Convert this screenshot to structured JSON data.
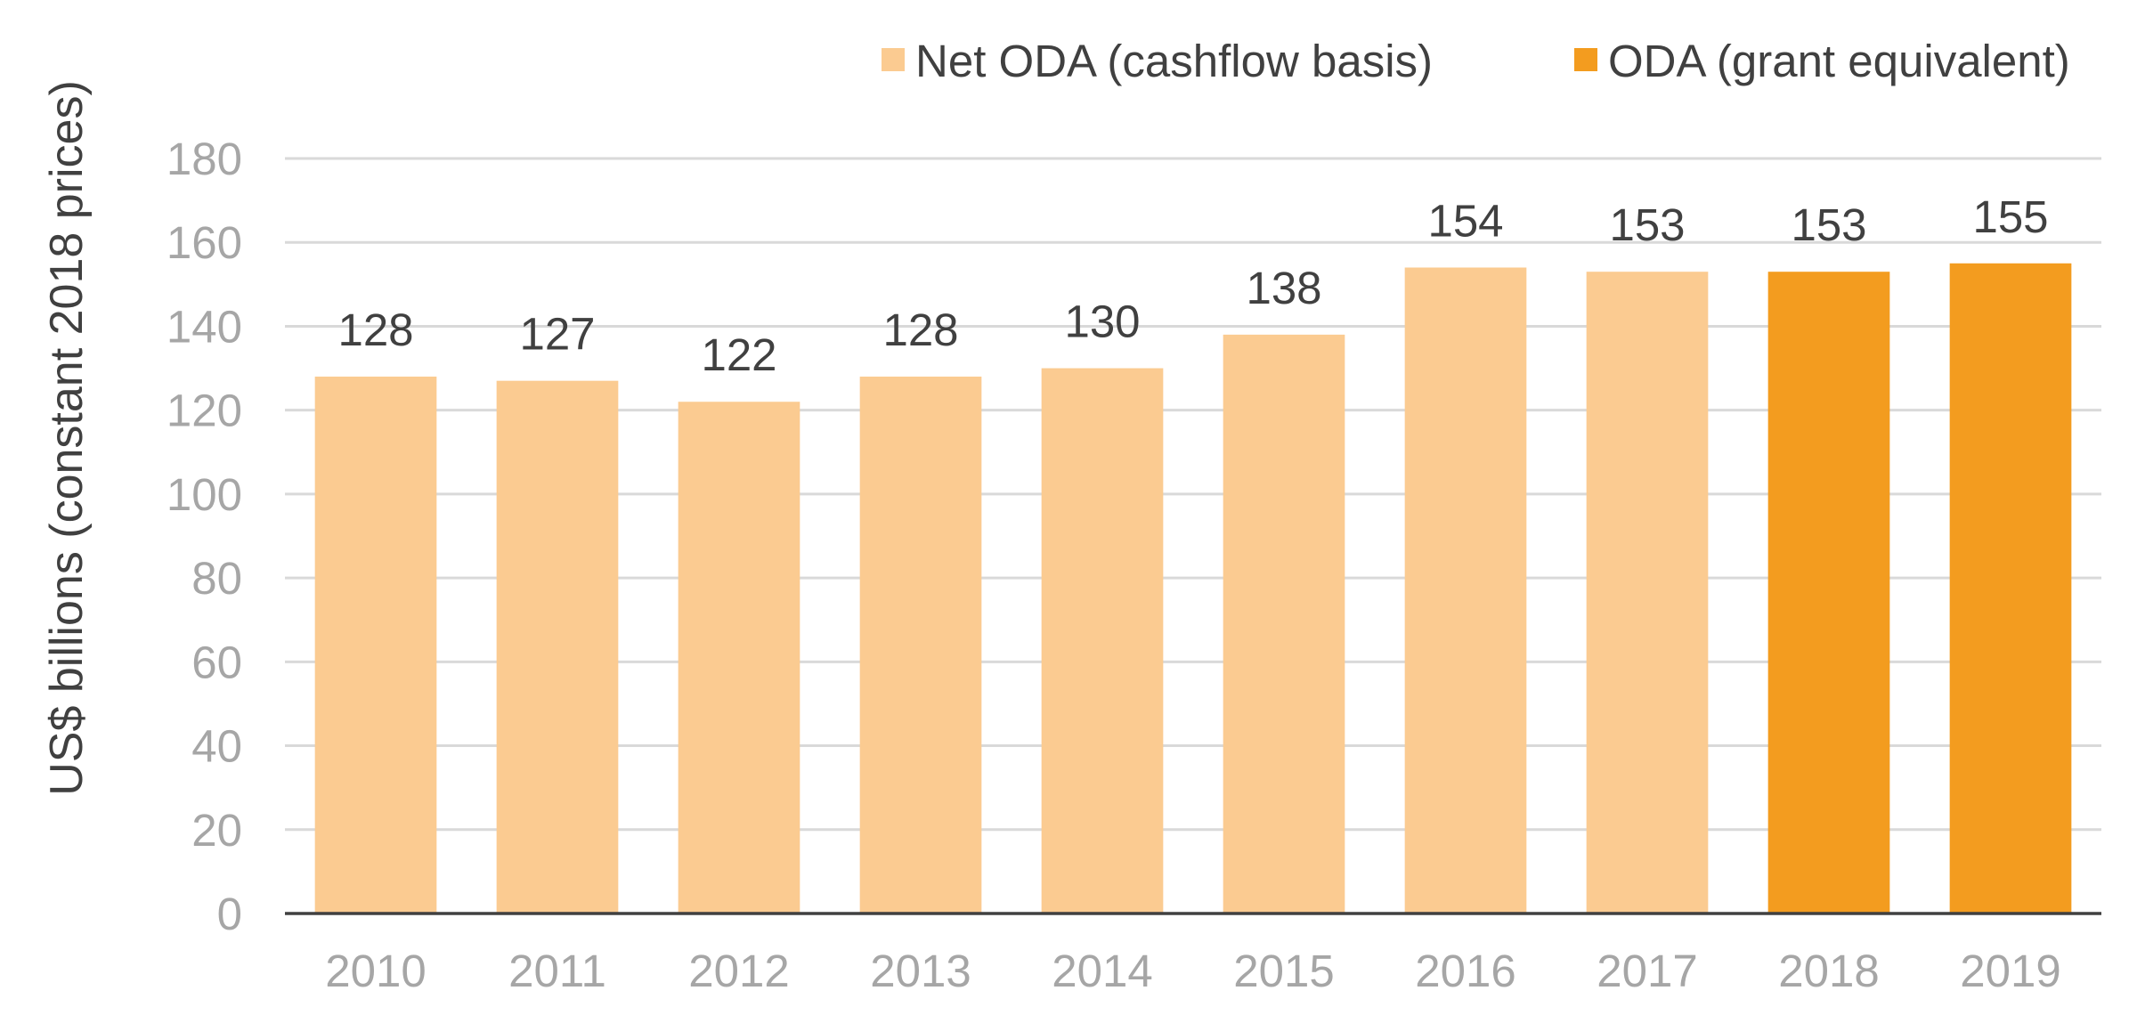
{
  "chart_data": {
    "type": "bar",
    "title": "",
    "xlabel": "",
    "ylabel": "US$ billions (constant 2018 prices)",
    "ylim": [
      0,
      180
    ],
    "yticks": [
      0,
      20,
      40,
      60,
      80,
      100,
      120,
      140,
      160,
      180
    ],
    "grid": true,
    "legend_position": "top-right",
    "categories": [
      "2010",
      "2011",
      "2012",
      "2013",
      "2014",
      "2015",
      "2016",
      "2017",
      "2018",
      "2019"
    ],
    "values": [
      128,
      127,
      122,
      128,
      130,
      138,
      154,
      153,
      153,
      155
    ],
    "value_labels": [
      "128",
      "127",
      "122",
      "128",
      "130",
      "138",
      "154",
      "153",
      "153",
      "155"
    ],
    "bar_series": [
      0,
      0,
      0,
      0,
      0,
      0,
      0,
      0,
      1,
      1
    ],
    "series": [
      {
        "name": "Net ODA (cashflow basis)",
        "color": "#fbcb91",
        "categories": [
          "2010",
          "2011",
          "2012",
          "2013",
          "2014",
          "2015",
          "2016",
          "2017"
        ]
      },
      {
        "name": "ODA (grant equivalent)",
        "color": "#f39c1f",
        "categories": [
          "2018",
          "2019"
        ]
      }
    ]
  }
}
